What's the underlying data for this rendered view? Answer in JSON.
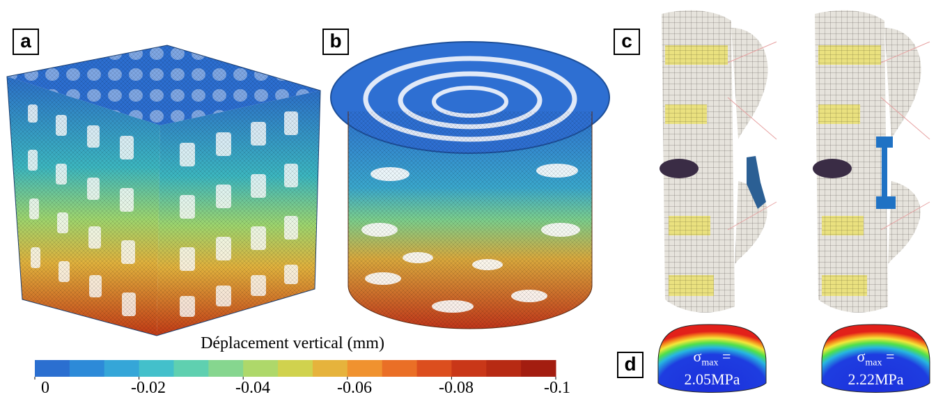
{
  "panels": {
    "a": {
      "label": "a"
    },
    "b": {
      "label": "b"
    },
    "c": {
      "label": "c"
    },
    "d": {
      "label": "d"
    }
  },
  "colorbar": {
    "title": "Déplacement vertical (mm)",
    "ticks": [
      "0",
      "-0.02",
      "-0.04",
      "-0.06",
      "-0.08",
      "-0.1"
    ],
    "colors": [
      "#2b6fd0",
      "#2d8ad8",
      "#35a6d8",
      "#43c0cb",
      "#5fd0b0",
      "#86d68f",
      "#aed86a",
      "#d0d24e",
      "#e6b33c",
      "#f0922f",
      "#ea6f26",
      "#dc4e1e",
      "#c93718",
      "#b72a13",
      "#a31d10"
    ]
  },
  "stress": [
    {
      "symbol": "σ",
      "subscript": "max",
      "equals": "=",
      "value": "2.05MPa"
    },
    {
      "symbol": "σ",
      "subscript": "max",
      "equals": "=",
      "value": "2.22MPa"
    }
  ]
}
